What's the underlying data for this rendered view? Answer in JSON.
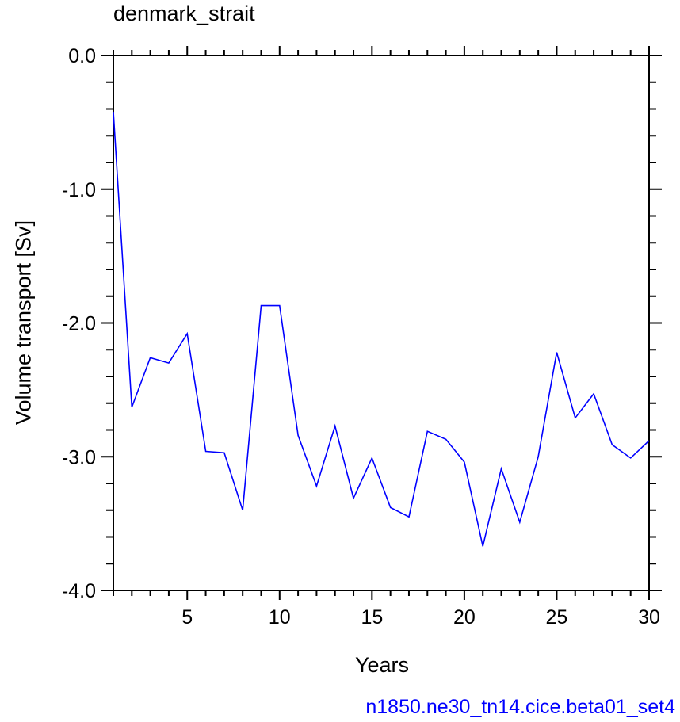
{
  "chart_data": {
    "type": "line",
    "title": "denmark_strait",
    "xlabel": "Years",
    "ylabel": "Volume transport [Sv]",
    "footer": "n1850.ne30_tn14.cice.beta01_set4",
    "xlim": [
      1,
      30
    ],
    "ylim": [
      -4.0,
      0.0
    ],
    "x_ticks": [
      5,
      10,
      15,
      20,
      25,
      30
    ],
    "x_tick_labels": [
      "5",
      "10",
      "15",
      "20",
      "25",
      "30"
    ],
    "y_ticks": [
      0.0,
      -1.0,
      -2.0,
      -3.0,
      -4.0
    ],
    "y_tick_labels": [
      "0.0",
      "-1.0",
      "-2.0",
      "-3.0",
      "-4.0"
    ],
    "grid": false,
    "series": [
      {
        "color": "#0000ff",
        "x": [
          1,
          2,
          3,
          4,
          5,
          6,
          7,
          8,
          9,
          10,
          11,
          12,
          13,
          14,
          15,
          16,
          17,
          18,
          19,
          20,
          21,
          22,
          23,
          24,
          25,
          26,
          27,
          28,
          29,
          30
        ],
        "values": [
          -0.42,
          -2.63,
          -2.26,
          -2.3,
          -2.08,
          -2.96,
          -2.97,
          -3.4,
          -1.87,
          -1.87,
          -2.84,
          -3.22,
          -2.77,
          -3.31,
          -3.01,
          -3.38,
          -3.45,
          -2.81,
          -2.87,
          -3.04,
          -3.67,
          -3.09,
          -3.49,
          -3.0,
          -2.22,
          -2.71,
          -2.53,
          -2.91,
          -3.01,
          -2.88
        ]
      }
    ]
  }
}
